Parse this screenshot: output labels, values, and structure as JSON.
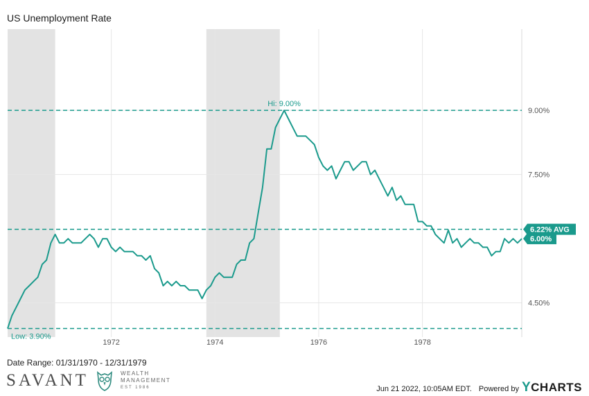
{
  "colors": {
    "line": "#1a9a8c",
    "recession": "#e3e3e3",
    "grid": "#e6e6e6"
  },
  "chart_data": {
    "type": "line",
    "title": "US Unemployment Rate",
    "x_ticks": [
      "1972",
      "1974",
      "1976",
      "1978"
    ],
    "y_ticks": [
      "9.00%",
      "7.50%",
      "4.50%"
    ],
    "ylim": [
      3.7,
      10.9
    ],
    "xlim": [
      "1970-01",
      "1979-12"
    ],
    "grid": true,
    "recessions": [
      [
        "1970-01",
        "1970-11"
      ],
      [
        "1973-11",
        "1975-03"
      ]
    ],
    "hi_label": "Hi: 9.00%",
    "low_label": "Low: 3.90%",
    "avg_label": "6.22% AVG",
    "last_label": "6.00%",
    "hi_value": 9.0,
    "low_value": 3.9,
    "avg_value": 6.22,
    "last_value": 6.0,
    "series": [
      {
        "start": "1970-01",
        "frequency": "monthly",
        "values": [
          3.9,
          4.2,
          4.4,
          4.6,
          4.8,
          4.9,
          5.0,
          5.1,
          5.4,
          5.5,
          5.9,
          6.1,
          5.9,
          5.9,
          6.0,
          5.9,
          5.9,
          5.9,
          6.0,
          6.1,
          6.0,
          5.8,
          6.0,
          6.0,
          5.8,
          5.7,
          5.8,
          5.7,
          5.7,
          5.7,
          5.6,
          5.6,
          5.5,
          5.6,
          5.3,
          5.2,
          4.9,
          5.0,
          4.9,
          5.0,
          4.9,
          4.9,
          4.8,
          4.8,
          4.8,
          4.6,
          4.8,
          4.9,
          5.1,
          5.2,
          5.1,
          5.1,
          5.1,
          5.4,
          5.5,
          5.5,
          5.9,
          6.0,
          6.6,
          7.2,
          8.1,
          8.1,
          8.6,
          8.8,
          9.0,
          8.8,
          8.6,
          8.4,
          8.4,
          8.4,
          8.3,
          8.2,
          7.9,
          7.7,
          7.6,
          7.7,
          7.4,
          7.6,
          7.8,
          7.8,
          7.6,
          7.7,
          7.8,
          7.8,
          7.5,
          7.6,
          7.4,
          7.2,
          7.0,
          7.2,
          6.9,
          7.0,
          6.8,
          6.8,
          6.8,
          6.4,
          6.4,
          6.3,
          6.3,
          6.1,
          6.0,
          5.9,
          6.2,
          5.9,
          6.0,
          5.8,
          5.9,
          6.0,
          5.9,
          5.9,
          5.8,
          5.8,
          5.6,
          5.7,
          5.7,
          6.0,
          5.9,
          6.0,
          5.9,
          6.0
        ]
      }
    ]
  },
  "footer": {
    "date_range": "Date Range: 01/31/1970 - 12/31/1979",
    "timestamp": "Jun 21 2022, 10:05AM EDT.",
    "powered_by": "Powered by",
    "ycharts_y": "Y",
    "ycharts_rest": "CHARTS"
  },
  "logo": {
    "name": "SAVANT",
    "line1": "WEALTH",
    "line2": "MANAGEMENT",
    "line3": "EST 1986"
  }
}
